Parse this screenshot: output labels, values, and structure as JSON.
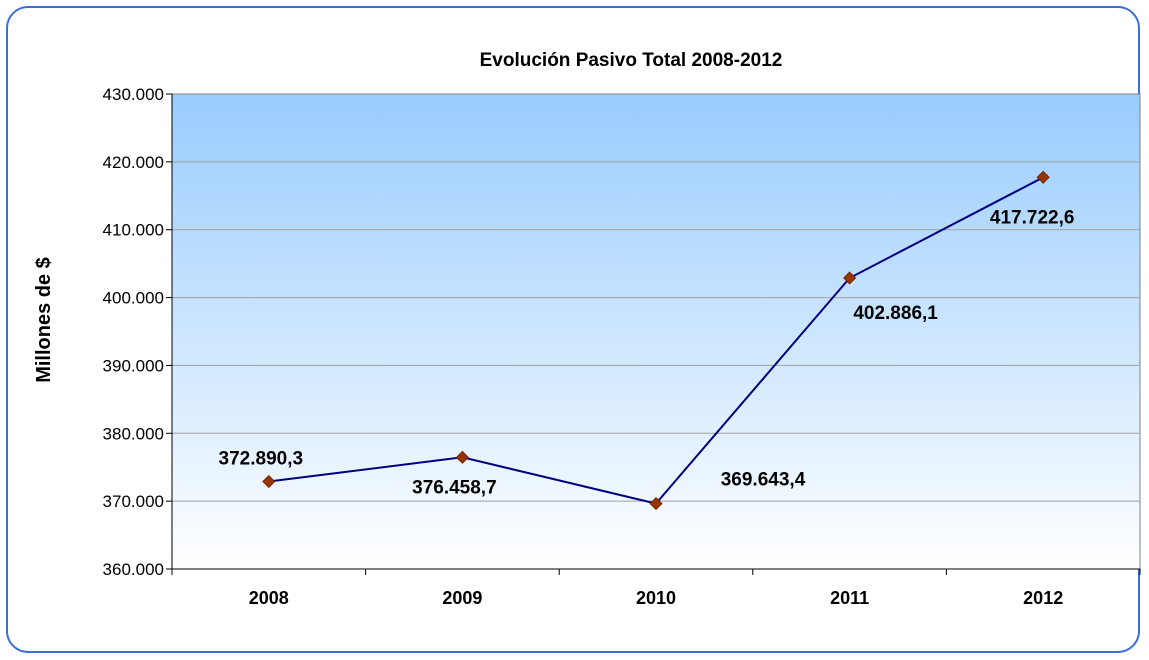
{
  "chart_data": {
    "type": "line",
    "title": "Evolución Pasivo Total 2008-2012",
    "ylabel": "Millones de $",
    "xlabel": "",
    "categories": [
      "2008",
      "2009",
      "2010",
      "2011",
      "2012"
    ],
    "values": [
      372890.3,
      376458.7,
      369643.4,
      402886.1,
      417722.6
    ],
    "data_labels": [
      "372.890,3",
      "376.458,7",
      "369.643,4",
      "402.886,1",
      "417.722,6"
    ],
    "ylim": [
      360000,
      430000
    ],
    "yticks": [
      360000,
      370000,
      380000,
      390000,
      400000,
      410000,
      420000,
      430000
    ],
    "ytick_labels": [
      "360.000",
      "370.000",
      "380.000",
      "390.000",
      "400.000",
      "410.000",
      "420.000",
      "430.000"
    ],
    "grid": "horizontal",
    "legend": "none",
    "colors": {
      "line": "#000080",
      "marker": "#993300",
      "plot_top": "#99ccff",
      "plot_bottom": "#ffffff",
      "frame_border": "#3a6fd8"
    }
  }
}
